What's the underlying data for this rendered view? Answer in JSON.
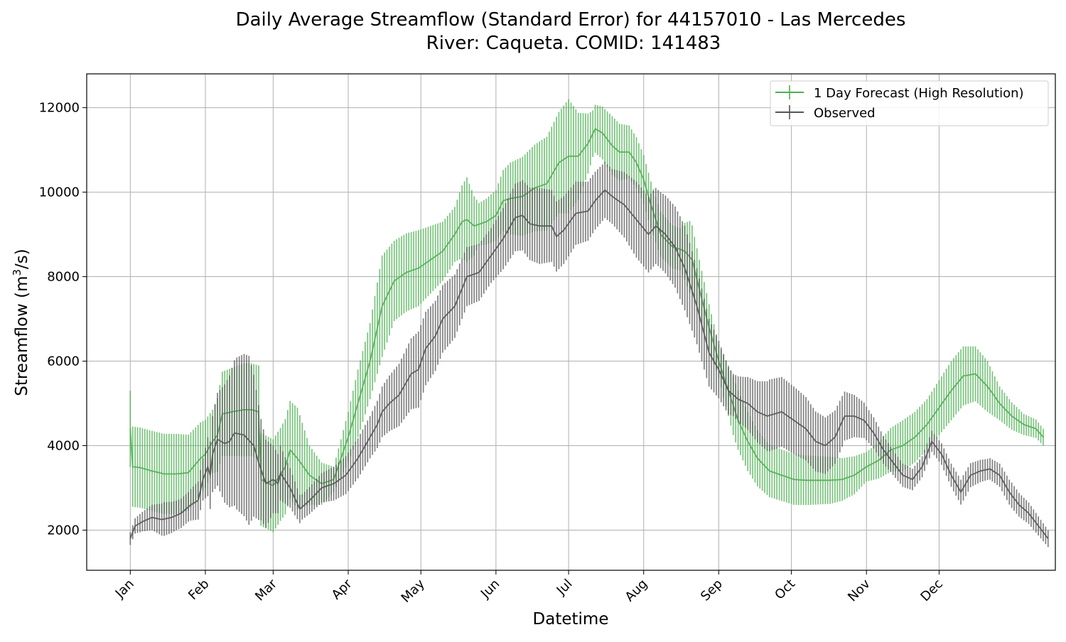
{
  "chart_data": {
    "type": "line",
    "title": "Daily Average Streamflow (Standard Error) for 44157010 - Las Mercedes",
    "subtitle": "River: Caqueta. COMID: 141483",
    "xlabel": "Datetime",
    "ylabel_main": "Streamflow (m",
    "ylabel_sup": "3",
    "ylabel_tail": "/s)",
    "x_tick_labels": [
      "Jan",
      "Feb",
      "Mar",
      "Apr",
      "May",
      "Jun",
      "Jul",
      "Aug",
      "Sep",
      "Oct",
      "Nov",
      "Dec"
    ],
    "x_tick_days": [
      1,
      32,
      60,
      91,
      121,
      152,
      182,
      213,
      244,
      274,
      305,
      335
    ],
    "xlim": [
      -17,
      383
    ],
    "ylim": [
      1050,
      12800
    ],
    "y_ticks": [
      2000,
      4000,
      6000,
      8000,
      10000,
      12000
    ],
    "y_tick_labels": [
      "2000",
      "4000",
      "6000",
      "8000",
      "10000",
      "12000"
    ],
    "grid": true,
    "legend_position": "top-right",
    "series": [
      {
        "name": "1 Day Forecast (High Resolution)",
        "color": "#4caf50",
        "mean_knots": [
          [
            1,
            4400
          ],
          [
            2,
            3500
          ],
          [
            5,
            3480
          ],
          [
            10,
            3400
          ],
          [
            15,
            3330
          ],
          [
            20,
            3330
          ],
          [
            25,
            3360
          ],
          [
            30,
            3700
          ],
          [
            32,
            3800
          ],
          [
            35,
            4100
          ],
          [
            37,
            4250
          ],
          [
            39,
            4750
          ],
          [
            43,
            4800
          ],
          [
            48,
            4850
          ],
          [
            51,
            4850
          ],
          [
            54,
            4800
          ],
          [
            55,
            3200
          ],
          [
            60,
            3050
          ],
          [
            65,
            3500
          ],
          [
            67,
            3900
          ],
          [
            70,
            3700
          ],
          [
            75,
            3300
          ],
          [
            80,
            3100
          ],
          [
            85,
            3200
          ],
          [
            91,
            4200
          ],
          [
            95,
            5000
          ],
          [
            100,
            6000
          ],
          [
            105,
            7300
          ],
          [
            110,
            7900
          ],
          [
            115,
            8100
          ],
          [
            120,
            8200
          ],
          [
            125,
            8400
          ],
          [
            130,
            8600
          ],
          [
            135,
            9000
          ],
          [
            138,
            9300
          ],
          [
            140,
            9350
          ],
          [
            143,
            9200
          ],
          [
            148,
            9300
          ],
          [
            152,
            9450
          ],
          [
            155,
            9800
          ],
          [
            158,
            9850
          ],
          [
            163,
            9900
          ],
          [
            168,
            10100
          ],
          [
            173,
            10200
          ],
          [
            178,
            10700
          ],
          [
            182,
            10850
          ],
          [
            186,
            10850
          ],
          [
            190,
            11150
          ],
          [
            193,
            11500
          ],
          [
            196,
            11400
          ],
          [
            200,
            11100
          ],
          [
            203,
            10950
          ],
          [
            207,
            10950
          ],
          [
            210,
            10700
          ],
          [
            213,
            10300
          ],
          [
            216,
            9700
          ],
          [
            220,
            9000
          ],
          [
            225,
            8700
          ],
          [
            228,
            8650
          ],
          [
            230,
            8600
          ],
          [
            233,
            8400
          ],
          [
            236,
            7700
          ],
          [
            240,
            6800
          ],
          [
            244,
            6000
          ],
          [
            248,
            5300
          ],
          [
            252,
            4600
          ],
          [
            256,
            4100
          ],
          [
            260,
            3700
          ],
          [
            265,
            3400
          ],
          [
            270,
            3300
          ],
          [
            275,
            3200
          ],
          [
            280,
            3180
          ],
          [
            285,
            3180
          ],
          [
            290,
            3180
          ],
          [
            295,
            3200
          ],
          [
            300,
            3300
          ],
          [
            305,
            3500
          ],
          [
            310,
            3650
          ],
          [
            315,
            3900
          ],
          [
            320,
            4000
          ],
          [
            325,
            4200
          ],
          [
            330,
            4500
          ],
          [
            335,
            4900
          ],
          [
            340,
            5300
          ],
          [
            345,
            5650
          ],
          [
            350,
            5700
          ],
          [
            355,
            5400
          ],
          [
            360,
            5000
          ],
          [
            365,
            4700
          ],
          [
            370,
            4500
          ],
          [
            375,
            4400
          ],
          [
            378,
            4200
          ]
        ],
        "error_knots": [
          [
            1,
            900
          ],
          [
            2,
            950
          ],
          [
            20,
            950
          ],
          [
            30,
            850
          ],
          [
            35,
            750
          ],
          [
            39,
            1000
          ],
          [
            48,
            1100
          ],
          [
            54,
            1100
          ],
          [
            56,
            1100
          ],
          [
            63,
            1100
          ],
          [
            70,
            1200
          ],
          [
            75,
            700
          ],
          [
            85,
            300
          ],
          [
            95,
            800
          ],
          [
            100,
            900
          ],
          [
            105,
            1200
          ],
          [
            110,
            950
          ],
          [
            120,
            900
          ],
          [
            130,
            700
          ],
          [
            135,
            650
          ],
          [
            140,
            1000
          ],
          [
            145,
            500
          ],
          [
            152,
            600
          ],
          [
            158,
            850
          ],
          [
            178,
            1200
          ],
          [
            182,
            1350
          ],
          [
            192,
            550
          ],
          [
            200,
            700
          ],
          [
            210,
            600
          ],
          [
            216,
            550
          ],
          [
            228,
            500
          ],
          [
            232,
            850
          ],
          [
            236,
            700
          ],
          [
            244,
            400
          ],
          [
            250,
            700
          ],
          [
            256,
            700
          ],
          [
            265,
            620
          ],
          [
            275,
            600
          ],
          [
            290,
            560
          ],
          [
            300,
            450
          ],
          [
            305,
            350
          ],
          [
            320,
            600
          ],
          [
            330,
            600
          ],
          [
            340,
            700
          ],
          [
            345,
            700
          ],
          [
            355,
            600
          ],
          [
            360,
            400
          ],
          [
            370,
            250
          ],
          [
            378,
            200
          ]
        ]
      },
      {
        "name": "Observed",
        "color": "#555555",
        "mean_knots": [
          [
            1,
            1800
          ],
          [
            3,
            2100
          ],
          [
            6,
            2200
          ],
          [
            10,
            2300
          ],
          [
            14,
            2250
          ],
          [
            18,
            2300
          ],
          [
            22,
            2400
          ],
          [
            26,
            2600
          ],
          [
            29,
            2700
          ],
          [
            31,
            3200
          ],
          [
            33,
            3500
          ],
          [
            34,
            3300
          ],
          [
            35,
            3800
          ],
          [
            37,
            4150
          ],
          [
            40,
            4050
          ],
          [
            42,
            4100
          ],
          [
            44,
            4300
          ],
          [
            48,
            4250
          ],
          [
            52,
            4000
          ],
          [
            54,
            3600
          ],
          [
            57,
            3100
          ],
          [
            60,
            3200
          ],
          [
            62,
            3100
          ],
          [
            63,
            3350
          ],
          [
            67,
            3000
          ],
          [
            71,
            2500
          ],
          [
            75,
            2700
          ],
          [
            80,
            3000
          ],
          [
            85,
            3100
          ],
          [
            90,
            3300
          ],
          [
            95,
            3700
          ],
          [
            100,
            4200
          ],
          [
            103,
            4500
          ],
          [
            105,
            4800
          ],
          [
            108,
            5000
          ],
          [
            112,
            5200
          ],
          [
            115,
            5500
          ],
          [
            117,
            5700
          ],
          [
            120,
            5800
          ],
          [
            123,
            6300
          ],
          [
            127,
            6600
          ],
          [
            130,
            7000
          ],
          [
            135,
            7300
          ],
          [
            140,
            8000
          ],
          [
            145,
            8100
          ],
          [
            150,
            8500
          ],
          [
            155,
            8900
          ],
          [
            160,
            9400
          ],
          [
            163,
            9450
          ],
          [
            166,
            9250
          ],
          [
            170,
            9200
          ],
          [
            175,
            9200
          ],
          [
            177,
            8950
          ],
          [
            180,
            9100
          ],
          [
            185,
            9500
          ],
          [
            190,
            9550
          ],
          [
            193,
            9800
          ],
          [
            197,
            10050
          ],
          [
            200,
            9900
          ],
          [
            205,
            9700
          ],
          [
            210,
            9350
          ],
          [
            215,
            9000
          ],
          [
            218,
            9200
          ],
          [
            222,
            9000
          ],
          [
            226,
            8700
          ],
          [
            230,
            8200
          ],
          [
            235,
            7300
          ],
          [
            240,
            6200
          ],
          [
            244,
            5800
          ],
          [
            248,
            5300
          ],
          [
            252,
            5100
          ],
          [
            256,
            5000
          ],
          [
            260,
            4800
          ],
          [
            264,
            4700
          ],
          [
            267,
            4750
          ],
          [
            270,
            4800
          ],
          [
            275,
            4600
          ],
          [
            280,
            4400
          ],
          [
            284,
            4100
          ],
          [
            288,
            4000
          ],
          [
            292,
            4200
          ],
          [
            296,
            4700
          ],
          [
            300,
            4700
          ],
          [
            304,
            4600
          ],
          [
            308,
            4300
          ],
          [
            312,
            3900
          ],
          [
            316,
            3600
          ],
          [
            320,
            3300
          ],
          [
            324,
            3200
          ],
          [
            328,
            3500
          ],
          [
            332,
            4100
          ],
          [
            336,
            3800
          ],
          [
            340,
            3300
          ],
          [
            344,
            2900
          ],
          [
            348,
            3300
          ],
          [
            352,
            3400
          ],
          [
            356,
            3450
          ],
          [
            360,
            3300
          ],
          [
            364,
            2900
          ],
          [
            368,
            2600
          ],
          [
            372,
            2400
          ],
          [
            376,
            2100
          ],
          [
            380,
            1800
          ]
        ],
        "error_knots": [
          [
            1,
            150
          ],
          [
            10,
            300
          ],
          [
            15,
            400
          ],
          [
            20,
            350
          ],
          [
            25,
            350
          ],
          [
            31,
            500
          ],
          [
            35,
            900
          ],
          [
            40,
            1400
          ],
          [
            45,
            1800
          ],
          [
            50,
            2000
          ],
          [
            55,
            1200
          ],
          [
            60,
            800
          ],
          [
            66,
            500
          ],
          [
            72,
            300
          ],
          [
            80,
            350
          ],
          [
            90,
            450
          ],
          [
            100,
            500
          ],
          [
            110,
            700
          ],
          [
            120,
            900
          ],
          [
            130,
            800
          ],
          [
            140,
            700
          ],
          [
            150,
            650
          ],
          [
            160,
            800
          ],
          [
            170,
            900
          ],
          [
            180,
            800
          ],
          [
            190,
            700
          ],
          [
            200,
            650
          ],
          [
            210,
            900
          ],
          [
            220,
            900
          ],
          [
            230,
            1000
          ],
          [
            240,
            800
          ],
          [
            250,
            500
          ],
          [
            255,
            600
          ],
          [
            265,
            850
          ],
          [
            275,
            800
          ],
          [
            285,
            700
          ],
          [
            295,
            600
          ],
          [
            305,
            400
          ],
          [
            315,
            300
          ],
          [
            325,
            250
          ],
          [
            335,
            250
          ],
          [
            345,
            300
          ],
          [
            355,
            250
          ],
          [
            365,
            300
          ],
          [
            380,
            200
          ]
        ]
      }
    ]
  }
}
